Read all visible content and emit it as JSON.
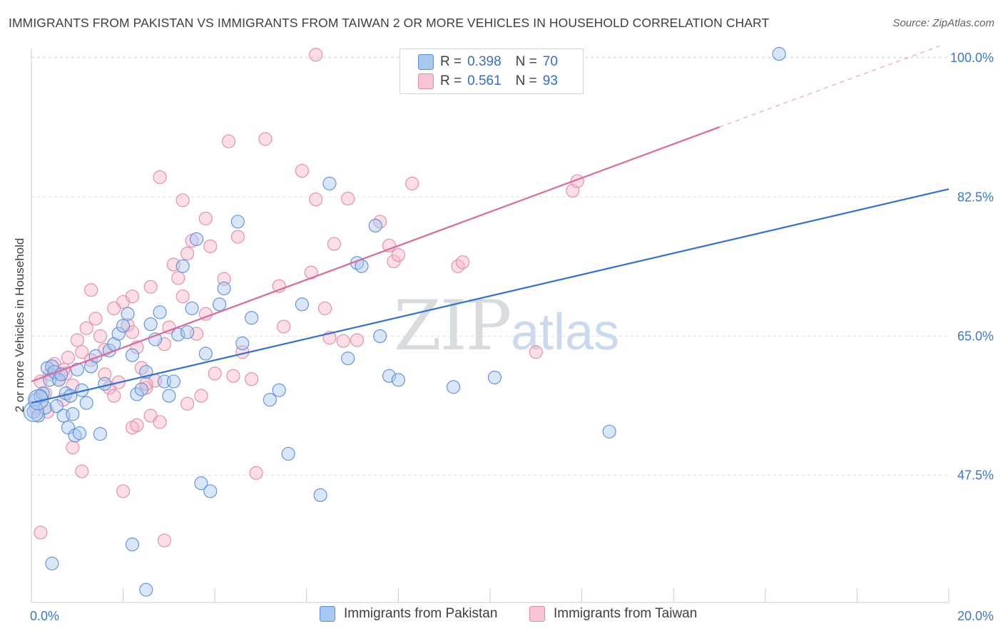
{
  "title": "IMMIGRANTS FROM PAKISTAN VS IMMIGRANTS FROM TAIWAN 2 OR MORE VEHICLES IN HOUSEHOLD CORRELATION CHART",
  "source": "Source: ZipAtlas.com",
  "watermark": {
    "zip": "ZIP",
    "atlas": "atlas"
  },
  "colors": {
    "pakistan_fill": "#a8c8ef",
    "pakistan_stroke": "#5b8fd6",
    "pakistan_line": "#2f72d6",
    "taiwan_fill": "#f7b6c8",
    "taiwan_stroke": "#e58aa8",
    "taiwan_line": "#e0679a",
    "tick_label": "#3a78d4",
    "grid": "#dde1e6"
  },
  "legend": {
    "rows": [
      {
        "r_label": "R =",
        "r_value": "0.398",
        "n_label": "N =",
        "n_value": "70"
      },
      {
        "r_label": "R =",
        "r_value": "0.561",
        "n_label": "N =",
        "n_value": "93"
      }
    ]
  },
  "bottom_legend": {
    "pakistan": "Immigrants from Pakistan",
    "taiwan": "Immigrants from Taiwan"
  },
  "chart_data": {
    "type": "scatter",
    "xlabel": "",
    "ylabel": "2 or more Vehicles in Household",
    "xlim": [
      0,
      20
    ],
    "ylim": [
      31.5,
      101
    ],
    "x_tick_labels": [
      {
        "value": 0,
        "label": "0.0%"
      },
      {
        "value": 20,
        "label": "20.0%"
      }
    ],
    "y_tick_labels": [
      {
        "value": 47.5,
        "label": "47.5%"
      },
      {
        "value": 65.0,
        "label": "65.0%"
      },
      {
        "value": 82.5,
        "label": "82.5%"
      },
      {
        "value": 100.0,
        "label": "100.0%"
      }
    ],
    "series": [
      {
        "name": "Immigrants from Pakistan",
        "r": 0.398,
        "n": 70,
        "trend": {
          "x": [
            0,
            20
          ],
          "y": [
            56.6,
            83.5
          ]
        },
        "points": [
          [
            0.05,
            55.5
          ],
          [
            0.1,
            57.0
          ],
          [
            0.15,
            55.0
          ],
          [
            0.2,
            57.5
          ],
          [
            0.25,
            57.8
          ],
          [
            0.3,
            56.0
          ],
          [
            0.35,
            61.0
          ],
          [
            0.4,
            59.5
          ],
          [
            0.45,
            61.2
          ],
          [
            0.5,
            60.5
          ],
          [
            0.55,
            56.2
          ],
          [
            0.6,
            59.5
          ],
          [
            0.65,
            60.2
          ],
          [
            0.7,
            55.0
          ],
          [
            0.75,
            57.8
          ],
          [
            0.8,
            53.5
          ],
          [
            0.85,
            57.5
          ],
          [
            0.9,
            55.2
          ],
          [
            0.95,
            52.5
          ],
          [
            1.0,
            60.8
          ],
          [
            1.05,
            52.8
          ],
          [
            1.1,
            58.2
          ],
          [
            1.2,
            56.6
          ],
          [
            1.3,
            61.2
          ],
          [
            1.4,
            62.5
          ],
          [
            1.5,
            52.7
          ],
          [
            1.6,
            59.0
          ],
          [
            1.7,
            63.2
          ],
          [
            1.8,
            64.0
          ],
          [
            1.9,
            65.3
          ],
          [
            2.0,
            66.3
          ],
          [
            2.1,
            67.8
          ],
          [
            2.2,
            62.6
          ],
          [
            2.3,
            57.7
          ],
          [
            2.4,
            58.3
          ],
          [
            2.5,
            60.5
          ],
          [
            2.6,
            66.5
          ],
          [
            2.7,
            64.6
          ],
          [
            2.8,
            68.0
          ],
          [
            2.9,
            59.3
          ],
          [
            3.0,
            57.5
          ],
          [
            3.1,
            59.3
          ],
          [
            3.2,
            65.2
          ],
          [
            3.3,
            73.8
          ],
          [
            3.4,
            65.5
          ],
          [
            3.5,
            68.5
          ],
          [
            3.6,
            77.2
          ],
          [
            3.7,
            46.5
          ],
          [
            3.8,
            62.8
          ],
          [
            3.9,
            45.5
          ],
          [
            4.1,
            69.0
          ],
          [
            4.2,
            71.0
          ],
          [
            4.5,
            79.4
          ],
          [
            4.6,
            64.1
          ],
          [
            4.8,
            67.3
          ],
          [
            5.2,
            57.0
          ],
          [
            5.4,
            58.2
          ],
          [
            5.6,
            50.2
          ],
          [
            5.9,
            69.0
          ],
          [
            6.3,
            45.0
          ],
          [
            6.5,
            84.2
          ],
          [
            6.9,
            62.2
          ],
          [
            7.1,
            74.2
          ],
          [
            7.2,
            73.8
          ],
          [
            7.5,
            78.9
          ],
          [
            7.6,
            65.0
          ],
          [
            7.8,
            60.0
          ],
          [
            8.0,
            59.5
          ],
          [
            9.2,
            58.6
          ],
          [
            10.1,
            59.8
          ],
          [
            12.6,
            53.0
          ],
          [
            16.3,
            100.5
          ]
        ],
        "big_points": [
          [
            0.05,
            55.5
          ],
          [
            0.15,
            57.0
          ]
        ],
        "outliers_low": [
          [
            0.45,
            36.4
          ],
          [
            2.2,
            38.8
          ],
          [
            2.5,
            33.1
          ]
        ]
      },
      {
        "name": "Immigrants from Taiwan",
        "r": 0.561,
        "n": 93,
        "trend": {
          "x": [
            0,
            15
          ],
          "y": [
            59.3,
            91.3
          ]
        },
        "trend_dashed": {
          "x": [
            15,
            19.8
          ],
          "y": [
            91.3,
            101.5
          ]
        },
        "points": [
          [
            0.1,
            56.0
          ],
          [
            0.2,
            59.3
          ],
          [
            0.3,
            57.8
          ],
          [
            0.35,
            55.5
          ],
          [
            0.4,
            60.2
          ],
          [
            0.5,
            61.5
          ],
          [
            0.6,
            59.5
          ],
          [
            0.7,
            57.0
          ],
          [
            0.75,
            60.3
          ],
          [
            0.8,
            62.3
          ],
          [
            0.9,
            58.8
          ],
          [
            1.0,
            64.5
          ],
          [
            1.1,
            63.0
          ],
          [
            1.2,
            66.0
          ],
          [
            1.3,
            62.0
          ],
          [
            1.4,
            67.2
          ],
          [
            1.5,
            65.0
          ],
          [
            1.6,
            63.3
          ],
          [
            1.7,
            58.5
          ],
          [
            1.8,
            57.5
          ],
          [
            1.9,
            59.2
          ],
          [
            2.0,
            69.3
          ],
          [
            2.1,
            66.4
          ],
          [
            2.2,
            65.5
          ],
          [
            2.3,
            63.6
          ],
          [
            2.4,
            61.0
          ],
          [
            2.5,
            58.5
          ],
          [
            2.6,
            55.0
          ],
          [
            2.7,
            59.4
          ],
          [
            2.8,
            54.2
          ],
          [
            2.9,
            64.0
          ],
          [
            3.0,
            66.1
          ],
          [
            3.1,
            74.0
          ],
          [
            3.2,
            72.3
          ],
          [
            3.3,
            70.0
          ],
          [
            3.4,
            75.4
          ],
          [
            3.5,
            77.0
          ],
          [
            3.6,
            65.3
          ],
          [
            3.8,
            67.8
          ],
          [
            4.0,
            60.3
          ],
          [
            4.2,
            72.2
          ],
          [
            4.3,
            89.5
          ],
          [
            4.4,
            60.0
          ],
          [
            4.5,
            77.5
          ],
          [
            4.6,
            63.0
          ],
          [
            4.8,
            59.6
          ],
          [
            4.9,
            47.8
          ],
          [
            5.1,
            89.8
          ],
          [
            5.4,
            71.3
          ],
          [
            5.5,
            66.2
          ],
          [
            5.9,
            85.8
          ],
          [
            6.1,
            73.0
          ],
          [
            6.2,
            82.2
          ],
          [
            6.4,
            68.5
          ],
          [
            6.5,
            64.8
          ],
          [
            6.6,
            76.6
          ],
          [
            6.8,
            64.4
          ],
          [
            6.9,
            82.3
          ],
          [
            7.1,
            64.5
          ],
          [
            7.6,
            79.4
          ],
          [
            7.8,
            76.4
          ],
          [
            7.9,
            74.4
          ],
          [
            8.0,
            75.2
          ],
          [
            8.3,
            84.2
          ],
          [
            9.3,
            73.8
          ],
          [
            9.4,
            74.3
          ],
          [
            11.0,
            63.0
          ],
          [
            11.8,
            83.3
          ],
          [
            11.9,
            84.5
          ],
          [
            6.2,
            100.4
          ],
          [
            0.9,
            51.0
          ],
          [
            1.1,
            48.0
          ],
          [
            2.0,
            45.5
          ],
          [
            2.2,
            53.5
          ],
          [
            3.3,
            82.1
          ],
          [
            2.8,
            85.0
          ],
          [
            1.3,
            70.8
          ],
          [
            2.6,
            71.2
          ],
          [
            3.8,
            79.8
          ],
          [
            3.4,
            56.5
          ],
          [
            3.7,
            57.5
          ],
          [
            2.3,
            53.8
          ],
          [
            1.6,
            60.2
          ],
          [
            0.2,
            40.3
          ],
          [
            2.9,
            39.3
          ],
          [
            2.5,
            59.0
          ],
          [
            1.8,
            68.5
          ],
          [
            0.7,
            60.8
          ],
          [
            3.9,
            76.3
          ],
          [
            2.2,
            70.0
          ]
        ]
      }
    ]
  }
}
